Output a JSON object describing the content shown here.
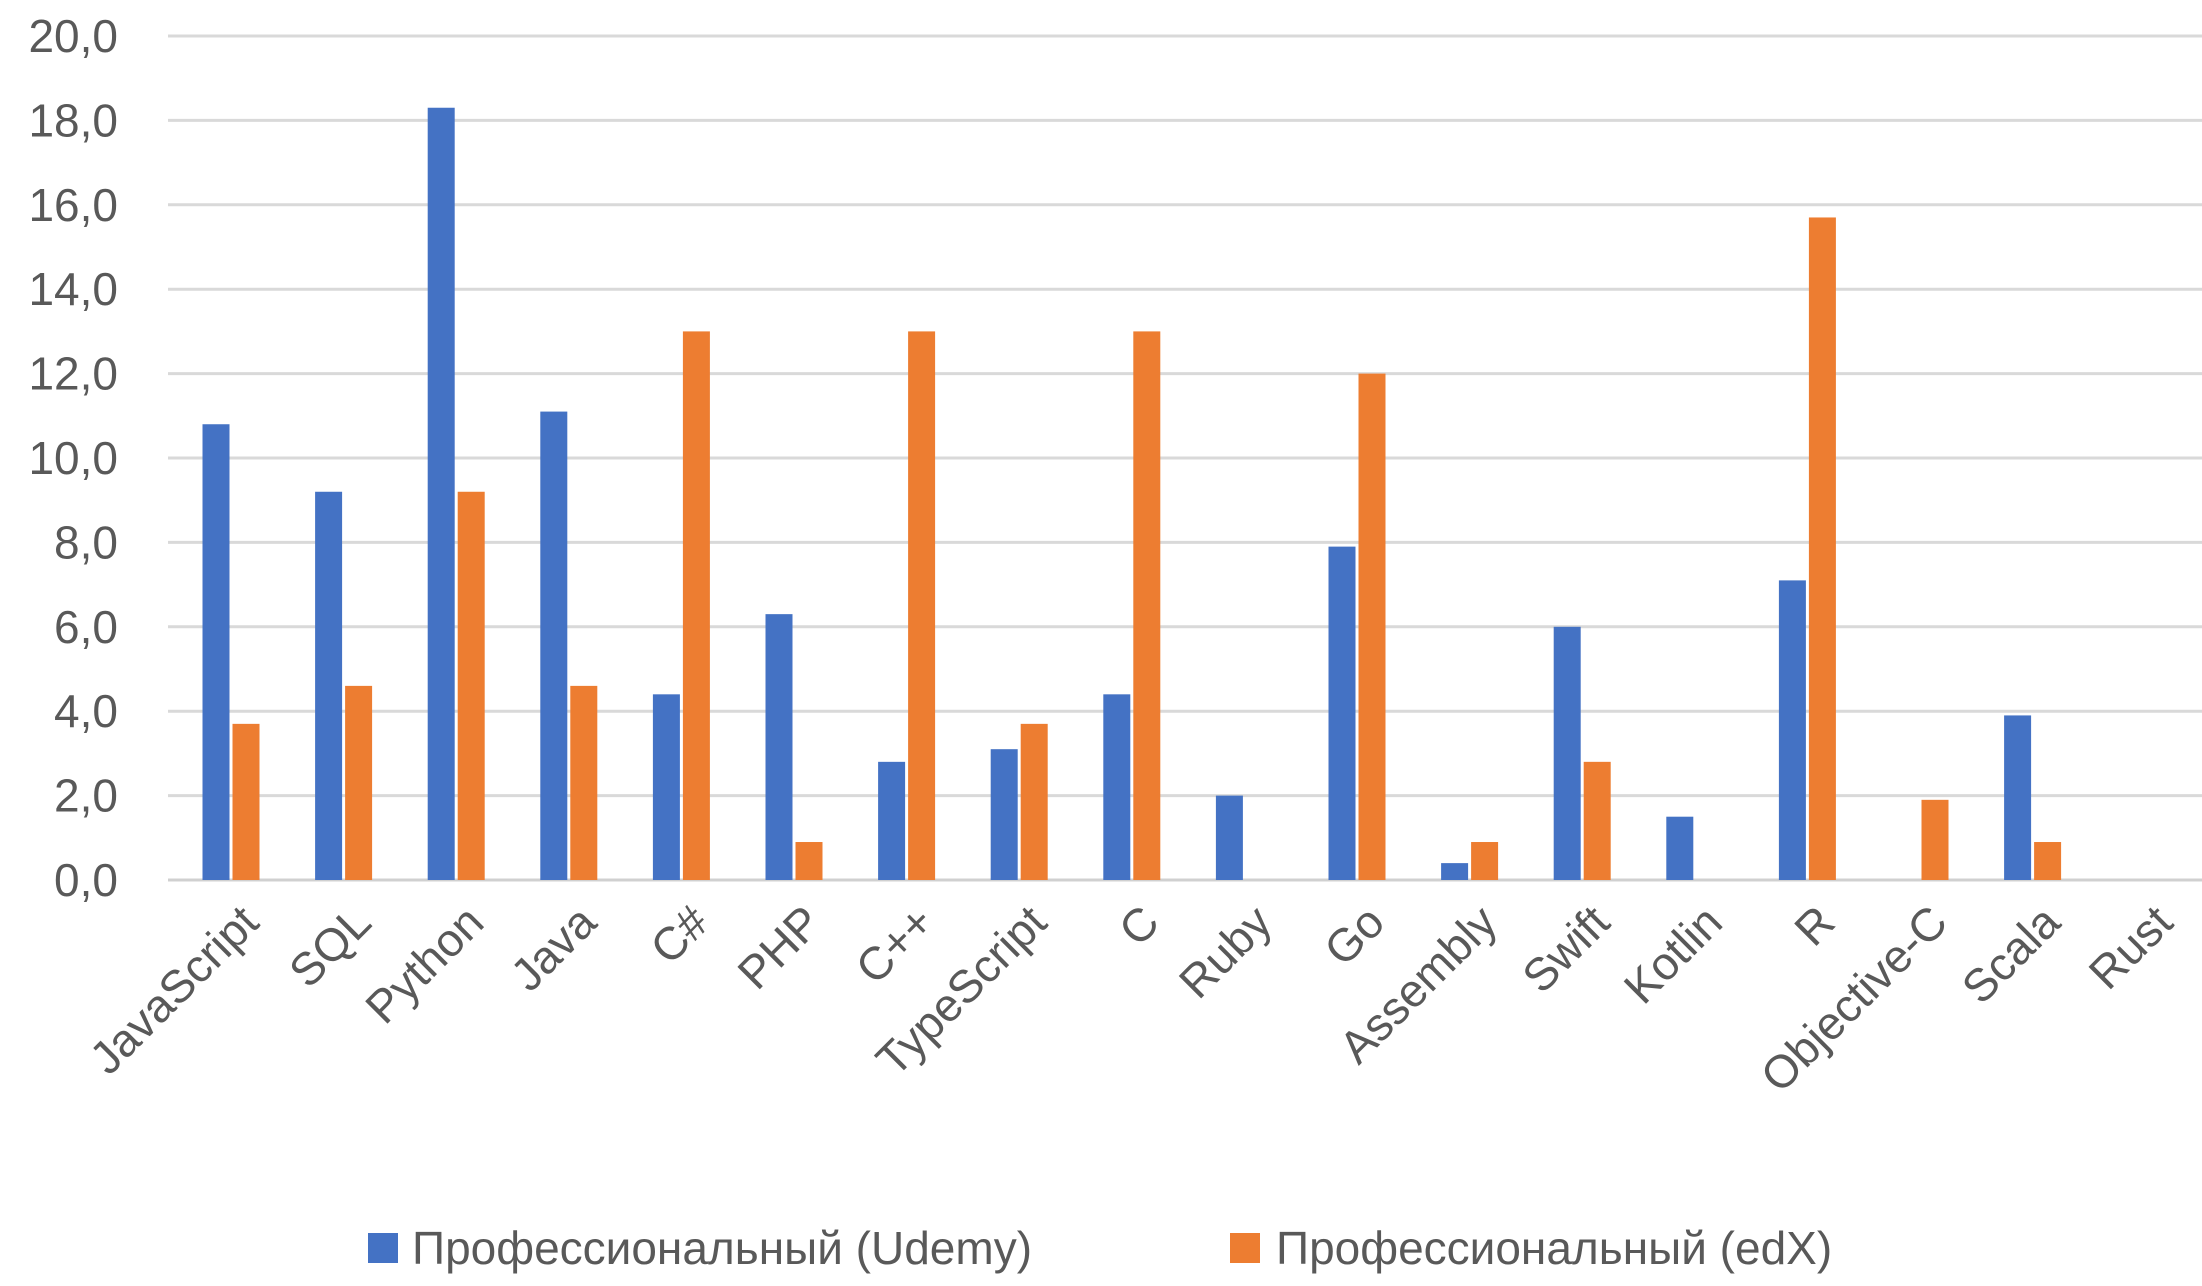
{
  "chart_data": {
    "type": "bar",
    "title": "",
    "xlabel": "",
    "ylabel": "",
    "ylim": [
      0,
      20
    ],
    "y_ticks": [
      "0,0",
      "2,0",
      "4,0",
      "6,0",
      "8,0",
      "10,0",
      "12,0",
      "14,0",
      "16,0",
      "18,0",
      "20,0"
    ],
    "grid": true,
    "legend_position": "bottom",
    "categories": [
      "JavaScript",
      "SQL",
      "Python",
      "Java",
      "C#",
      "PHP",
      "C++",
      "TypeScript",
      "C",
      "Ruby",
      "Go",
      "Assembly",
      "Swift",
      "Kotlin",
      "R",
      "Objective-C",
      "Scala",
      "Rust"
    ],
    "series": [
      {
        "name": "Профессиональный (Udemy)",
        "color": "#4472c4",
        "values": [
          10.8,
          9.2,
          18.3,
          11.1,
          4.4,
          6.3,
          2.8,
          3.1,
          4.4,
          2.0,
          7.9,
          0.4,
          6.0,
          1.5,
          7.1,
          0.0,
          3.9,
          0.0
        ]
      },
      {
        "name": "Профессиональный (edX)",
        "color": "#ed7d31",
        "values": [
          3.7,
          4.6,
          9.2,
          4.6,
          13.0,
          0.9,
          13.0,
          3.7,
          13.0,
          0.0,
          12.0,
          0.9,
          2.8,
          0.0,
          15.7,
          1.9,
          0.9,
          0.0
        ]
      }
    ]
  }
}
